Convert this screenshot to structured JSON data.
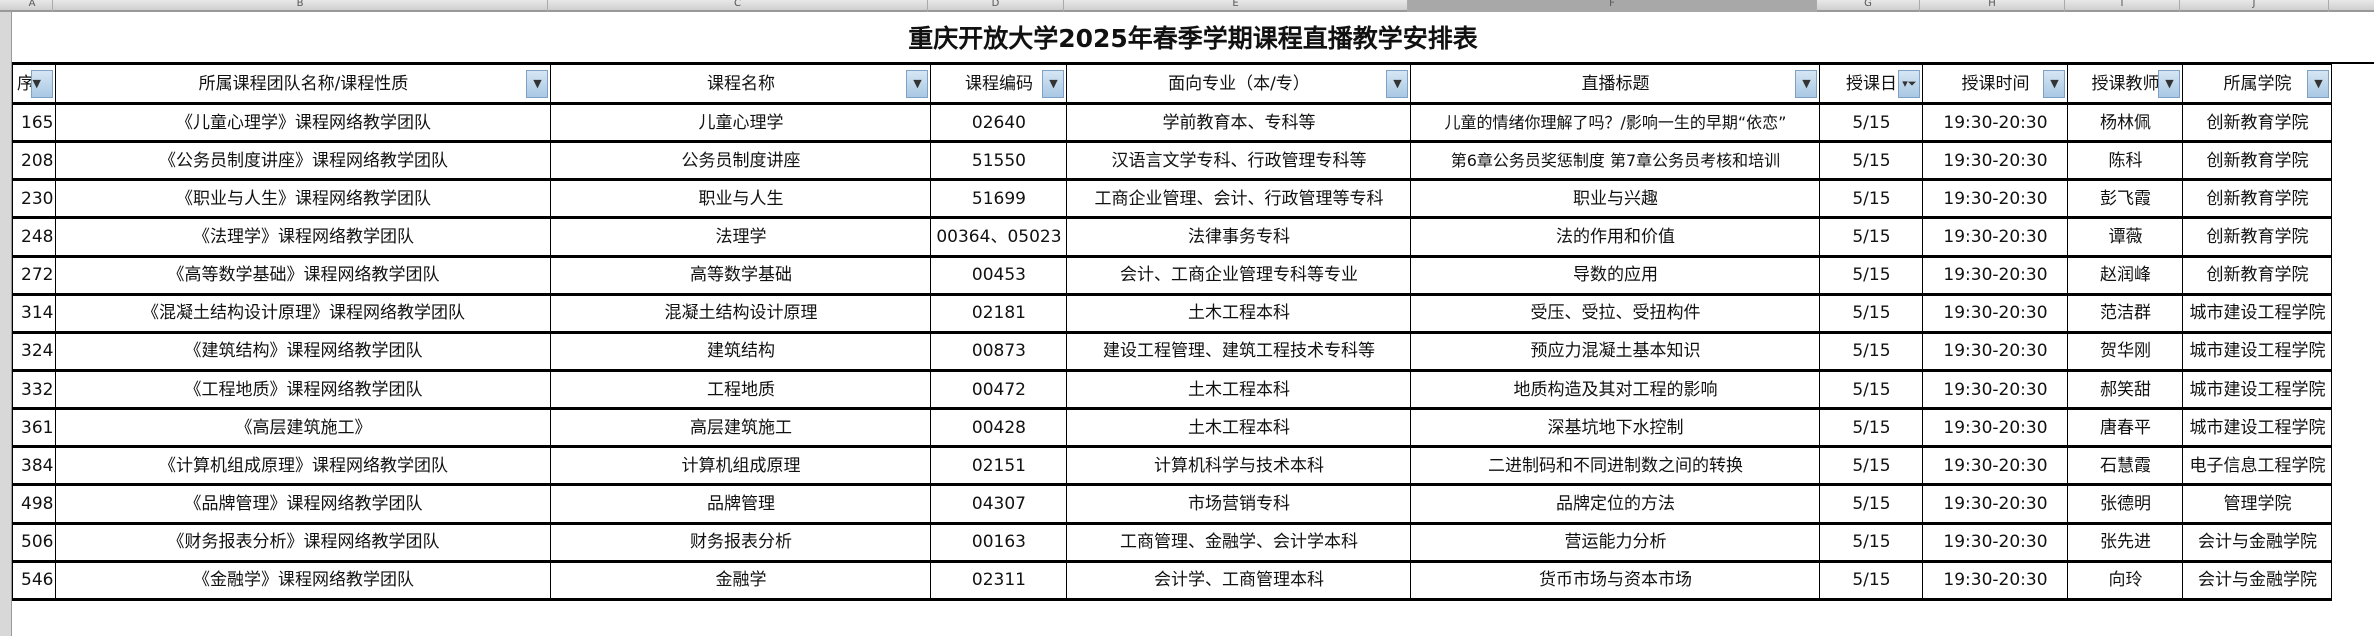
{
  "sheet": {
    "columns": [
      "A",
      "B",
      "C",
      "D",
      "E",
      "F",
      "G",
      "H",
      "I",
      "J"
    ],
    "selected_column": "F"
  },
  "title": "重庆开放大学2025年春季学期课程直播教学安排表",
  "headers": [
    "序",
    "所属课程团队名称/课程性质",
    "课程名称",
    "课程编码",
    "面向专业（本/专）",
    "直播标题",
    "授课日",
    "授课时间",
    "授课教师",
    "所属学院"
  ],
  "filter_active_column": "授课日",
  "rows": [
    [
      "165",
      "《儿童心理学》课程网络教学团队",
      "儿童心理学",
      "02640",
      "学前教育本、专科等",
      "儿童的情绪你理解了吗？/影响一生的早期“依恋”",
      "5/15",
      "19:30-20:30",
      "杨林佩",
      "创新教育学院"
    ],
    [
      "208",
      "《公务员制度讲座》课程网络教学团队",
      "公务员制度讲座",
      "51550",
      "汉语言文学专科、行政管理专科等",
      "第6章公务员奖惩制度 第7章公务员考核和培训",
      "5/15",
      "19:30-20:30",
      "陈科",
      "创新教育学院"
    ],
    [
      "230",
      "《职业与人生》课程网络教学团队",
      "职业与人生",
      "51699",
      "工商企业管理、会计、行政管理等专科",
      "职业与兴趣",
      "5/15",
      "19:30-20:30",
      "彭飞霞",
      "创新教育学院"
    ],
    [
      "248",
      "《法理学》课程网络教学团队",
      "法理学",
      "00364、05023",
      "法律事务专科",
      "法的作用和价值",
      "5/15",
      "19:30-20:30",
      "谭薇",
      "创新教育学院"
    ],
    [
      "272",
      "《高等数学基础》课程网络教学团队",
      "高等数学基础",
      "00453",
      "会计、工商企业管理专科等专业",
      "导数的应用",
      "5/15",
      "19:30-20:30",
      "赵润峰",
      "创新教育学院"
    ],
    [
      "314",
      "《混凝土结构设计原理》课程网络教学团队",
      "混凝土结构设计原理",
      "02181",
      "土木工程本科",
      "受压、受拉、受扭构件",
      "5/15",
      "19:30-20:30",
      "范洁群",
      "城市建设工程学院"
    ],
    [
      "324",
      "《建筑结构》课程网络教学团队",
      "建筑结构",
      "00873",
      "建设工程管理、建筑工程技术专科等",
      "预应力混凝土基本知识",
      "5/15",
      "19:30-20:30",
      "贺华刚",
      "城市建设工程学院"
    ],
    [
      "332",
      "《工程地质》课程网络教学团队",
      "工程地质",
      "00472",
      "土木工程本科",
      "地质构造及其对工程的影响",
      "5/15",
      "19:30-20:30",
      "郝笑甜",
      "城市建设工程学院"
    ],
    [
      "361",
      "《高层建筑施工》",
      "高层建筑施工",
      "00428",
      "土木工程本科",
      "深基坑地下水控制",
      "5/15",
      "19:30-20:30",
      "唐春平",
      "城市建设工程学院"
    ],
    [
      "384",
      "《计算机组成原理》课程网络教学团队",
      "计算机组成原理",
      "02151",
      "计算机科学与技术本科",
      "二进制码和不同进制数之间的转换",
      "5/15",
      "19:30-20:30",
      "石慧霞",
      "电子信息工程学院"
    ],
    [
      "498",
      "《品牌管理》课程网络教学团队",
      "品牌管理",
      "04307",
      "市场营销专科",
      "品牌定位的方法",
      "5/15",
      "19:30-20:30",
      "张德明",
      "管理学院"
    ],
    [
      "506",
      "《财务报表分析》课程网络教学团队",
      "财务报表分析",
      "00163",
      "工商管理、金融学、会计学本科",
      "营运能力分析",
      "5/15",
      "19:30-20:30",
      "张先进",
      "会计与金融学院"
    ],
    [
      "546",
      "《金融学》课程网络教学团队",
      "金融学",
      "02311",
      "会计学、工商管理本科",
      "货币市场与资本市场",
      "5/15",
      "19:30-20:30",
      "向玲",
      "会计与金融学院"
    ]
  ]
}
